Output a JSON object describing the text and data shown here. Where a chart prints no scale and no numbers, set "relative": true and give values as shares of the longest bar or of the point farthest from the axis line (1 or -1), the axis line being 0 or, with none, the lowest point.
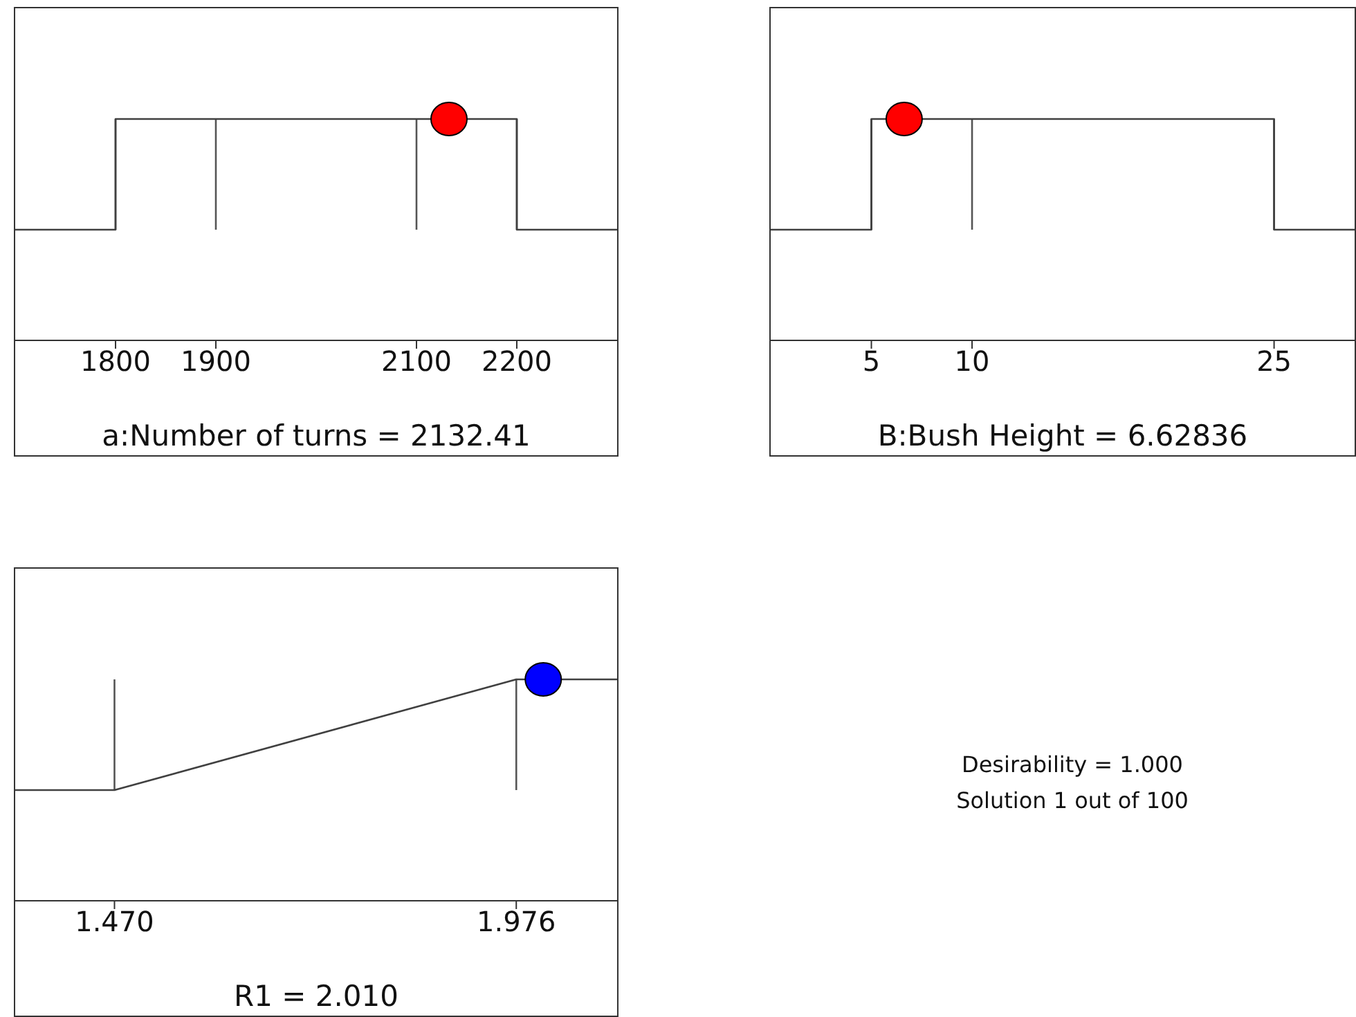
{
  "chart_data": [
    {
      "type": "line",
      "relative": true,
      "title": "a:Number of turns = 2132.41",
      "xlim": [
        1700,
        2300
      ],
      "xticks": [
        1800,
        1900,
        2100,
        2200
      ],
      "grid": "x",
      "series": [
        {
          "type": "line",
          "x": [
            1700,
            1800,
            1800,
            2200,
            2200,
            2300
          ],
          "values": [
            0,
            0,
            1,
            1,
            0,
            0
          ],
          "color": "#404040"
        },
        {
          "type": "scatter",
          "marker": "circle",
          "x": [
            2132.41
          ],
          "values": [
            1
          ],
          "color": "#ff0000"
        }
      ]
    },
    {
      "type": "line",
      "relative": true,
      "title": "B:Bush Height = 6.62836",
      "xlim": [
        0,
        29
      ],
      "xticks": [
        5,
        10,
        25
      ],
      "grid": "x",
      "series": [
        {
          "type": "line",
          "x": [
            0,
            5,
            5,
            25,
            25,
            29
          ],
          "values": [
            0,
            0,
            1,
            1,
            0,
            0
          ],
          "color": "#404040"
        },
        {
          "type": "scatter",
          "marker": "circle",
          "x": [
            6.62836
          ],
          "values": [
            1
          ],
          "color": "#ff0000"
        }
      ]
    },
    {
      "type": "line",
      "relative": true,
      "title": "R1 = 2.010",
      "xlim": [
        1.345,
        2.103
      ],
      "xticks": [
        {
          "value": 1.47,
          "label": "1.470"
        },
        {
          "value": 1.976,
          "label": "1.976"
        }
      ],
      "grid": "x",
      "series": [
        {
          "type": "line",
          "x": [
            1.345,
            1.47,
            1.976,
            2.103
          ],
          "values": [
            0,
            0,
            1,
            1
          ],
          "color": "#404040"
        },
        {
          "type": "scatter",
          "marker": "circle",
          "x": [
            2.01
          ],
          "values": [
            1
          ],
          "color": "#0000ff"
        }
      ]
    },
    {
      "type": "other",
      "annotations": [
        "Desirability = 1.000",
        "Solution 1 out of 100"
      ]
    }
  ]
}
